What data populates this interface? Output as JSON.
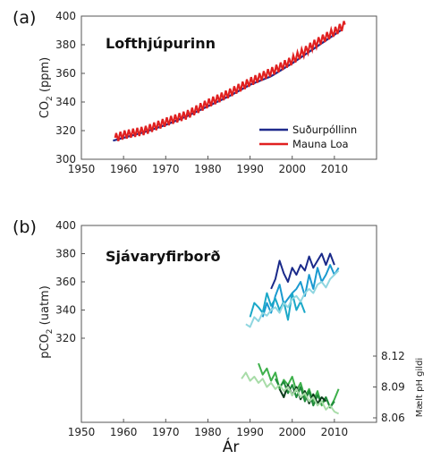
{
  "chart_data": [
    {
      "type": "line",
      "panel_label": "(a)",
      "title": "Lofthjúpurinn",
      "ylabel": "CO",
      "ylabel_sub": "2",
      "ylabel_unit": " (ppm)",
      "xlim": [
        1950,
        2020
      ],
      "ylim": [
        300,
        400
      ],
      "xticks": [
        "1950",
        "1960",
        "1970",
        "1980",
        "1990",
        "2000",
        "2010"
      ],
      "yticks": [
        "300",
        "320",
        "340",
        "360",
        "380",
        "400"
      ],
      "legend_position": "bottom-right",
      "series": [
        {
          "name": "Suðurpóllinn",
          "color": "#1f2a8c",
          "x": [
            1957.5,
            1960,
            1965,
            1970,
            1975,
            1980,
            1985,
            1990,
            1995,
            2000,
            2005,
            2010,
            2011.5
          ],
          "y": [
            313,
            315,
            319,
            324,
            330,
            337,
            344,
            352,
            358,
            367,
            377,
            387,
            390
          ]
        },
        {
          "name": "Mauna Loa",
          "color": "#e02020",
          "seasonal_amplitude": 3,
          "x": [
            1958,
            1960,
            1965,
            1970,
            1975,
            1980,
            1985,
            1990,
            1995,
            2000,
            2005,
            2010,
            2012.5
          ],
          "y": [
            315,
            317,
            320,
            326,
            331,
            339,
            346,
            354,
            361,
            369,
            380,
            389,
            394
          ]
        }
      ]
    },
    {
      "type": "line",
      "panel_label": "(b)",
      "title": "Sjávaryfirborð",
      "ylabel": "pCO",
      "ylabel_sub": "2",
      "ylabel_unit": " (uatm)",
      "y2label": "Mælt pH gildi",
      "xlabel": "Ár",
      "xlim": [
        1950,
        2020
      ],
      "ylim": [
        280,
        400
      ],
      "xticks": [
        "1950",
        "1960",
        "1970",
        "1980",
        "1990",
        "2000",
        "2010"
      ],
      "yticks": [
        "320",
        "340",
        "360",
        "380",
        "400"
      ],
      "y2ticks": [
        "8.06",
        "8.09",
        "8.12"
      ],
      "y2_values": [
        8.06,
        8.09,
        8.12
      ],
      "y2_data_range": [
        8.06,
        8.13
      ],
      "series": [
        {
          "color": "#1a2a8a",
          "axis": "left",
          "x": [
            1995,
            1996,
            1997,
            1998,
            1999,
            2000,
            2001,
            2002,
            2003,
            2004,
            2005,
            2006,
            2007,
            2008,
            2009,
            2010
          ],
          "y": [
            355,
            362,
            375,
            366,
            360,
            370,
            365,
            372,
            368,
            378,
            370,
            375,
            380,
            372,
            380,
            372
          ]
        },
        {
          "color": "#1a9ad0",
          "axis": "left",
          "x": [
            1993,
            1994,
            1995,
            1996,
            1997,
            1998,
            1999,
            2000,
            2001,
            2002,
            2003,
            2004,
            2005,
            2006,
            2007,
            2008,
            2009,
            2010,
            2011
          ],
          "y": [
            335,
            345,
            338,
            350,
            358,
            344,
            348,
            352,
            355,
            360,
            350,
            365,
            355,
            370,
            360,
            365,
            372,
            365,
            370
          ]
        },
        {
          "color": "#1aa8c8",
          "axis": "left",
          "x": [
            1990,
            1991,
            1992,
            1993,
            1994,
            1995,
            1996,
            1997,
            1998,
            1999,
            2000,
            2001,
            2002,
            2003
          ],
          "y": [
            335,
            345,
            342,
            338,
            352,
            343,
            348,
            340,
            346,
            333,
            352,
            340,
            346,
            338
          ]
        },
        {
          "color": "#8fd6e0",
          "axis": "left",
          "x": [
            1989,
            1990,
            1991,
            1992,
            1993,
            1994,
            1995,
            1996,
            1997,
            1998,
            1999,
            2000,
            2001,
            2002,
            2003,
            2004,
            2005,
            2006,
            2007,
            2008,
            2009,
            2010,
            2011
          ],
          "y": [
            330,
            328,
            335,
            332,
            338,
            336,
            340,
            342,
            338,
            345,
            342,
            348,
            350,
            346,
            352,
            355,
            352,
            358,
            360,
            356,
            362,
            365,
            368
          ]
        },
        {
          "color": "#3db04a",
          "axis": "right",
          "x": [
            1992,
            1993,
            1994,
            1995,
            1996,
            1997,
            1998,
            1999,
            2000,
            2001,
            2002,
            2003,
            2004,
            2005,
            2006,
            2007,
            2008,
            2009,
            2010,
            2011
          ],
          "y": [
            8.113,
            8.102,
            8.108,
            8.096,
            8.104,
            8.088,
            8.097,
            8.092,
            8.1,
            8.086,
            8.094,
            8.08,
            8.088,
            8.076,
            8.086,
            8.072,
            8.08,
            8.07,
            8.078,
            8.088
          ]
        },
        {
          "color": "#1e8a3a",
          "axis": "right",
          "x": [
            1996,
            1997,
            1998,
            1999,
            2000,
            2001,
            2002,
            2003,
            2004,
            2005,
            2006,
            2007,
            2008,
            2009,
            2010
          ],
          "y": [
            8.098,
            8.09,
            8.095,
            8.084,
            8.092,
            8.08,
            8.09,
            8.076,
            8.086,
            8.072,
            8.082,
            8.074,
            8.08,
            8.07,
            8.076
          ]
        },
        {
          "color": "#0b3a1a",
          "axis": "right",
          "x": [
            1997,
            1998,
            1999,
            2000,
            2001,
            2002,
            2003,
            2004,
            2005,
            2006,
            2007,
            2008
          ],
          "y": [
            8.088,
            8.08,
            8.092,
            8.082,
            8.09,
            8.078,
            8.086,
            8.074,
            8.083,
            8.074,
            8.08,
            8.076
          ]
        },
        {
          "color": "#a8dca8",
          "axis": "right",
          "x": [
            1988,
            1989,
            1990,
            1991,
            1992,
            1993,
            1994,
            1995,
            1996,
            1997,
            1998,
            1999,
            2000,
            2001,
            2002,
            2003,
            2004,
            2005,
            2006,
            2007,
            2008,
            2009,
            2010,
            2011
          ],
          "y": [
            8.098,
            8.104,
            8.096,
            8.1,
            8.094,
            8.098,
            8.09,
            8.094,
            8.088,
            8.092,
            8.086,
            8.09,
            8.082,
            8.088,
            8.08,
            8.084,
            8.076,
            8.08,
            8.072,
            8.076,
            8.068,
            8.072,
            8.066,
            8.064
          ]
        }
      ]
    }
  ]
}
